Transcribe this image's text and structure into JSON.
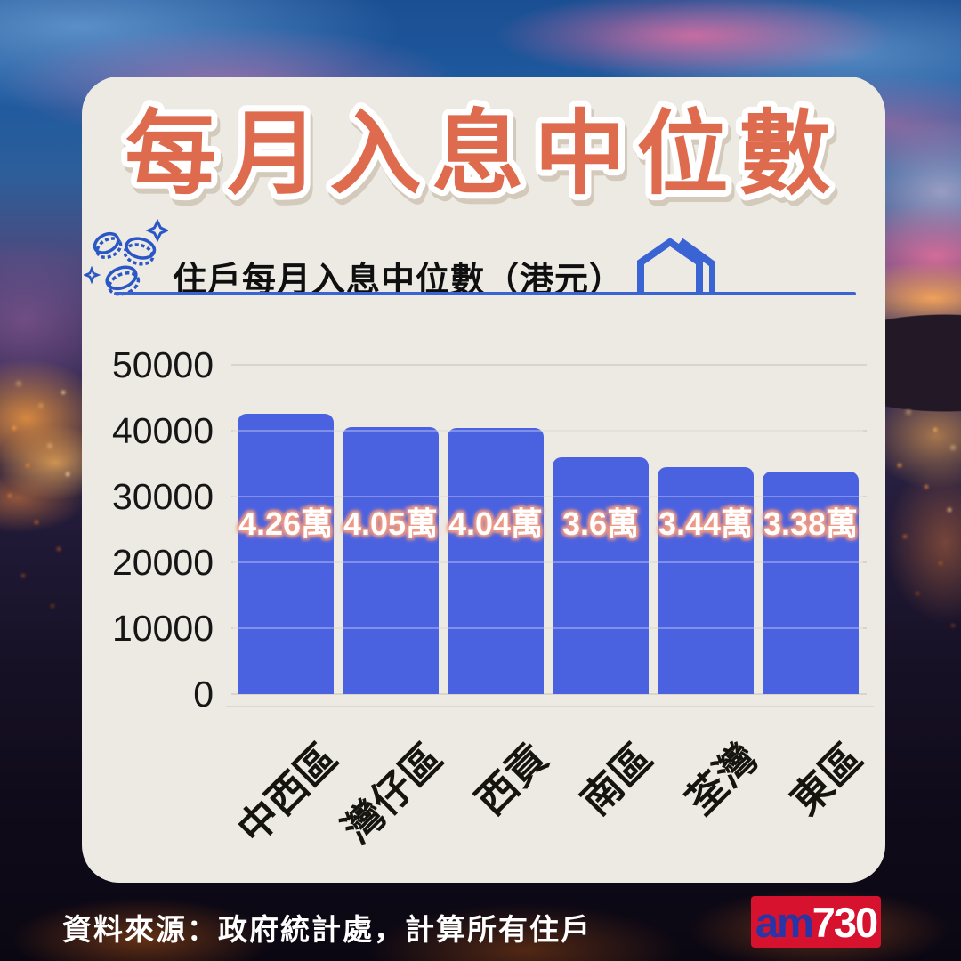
{
  "header": {
    "title": "每月入息中位數"
  },
  "subheader": {
    "label": "住戶每月入息中位數（港元）"
  },
  "icons": [
    "coins-icon",
    "house-icon"
  ],
  "chart_data": {
    "type": "bar",
    "title": "住戶每月入息中位數（港元）",
    "categories": [
      "中西區",
      "灣仔區",
      "西貢",
      "南區",
      "荃灣",
      "東區"
    ],
    "values": [
      42600,
      40500,
      40400,
      36000,
      34400,
      33800
    ],
    "bar_labels": [
      "4.26萬",
      "4.05萬",
      "4.04萬",
      "3.6萬",
      "3.44萬",
      "3.38萬"
    ],
    "ylabel": "",
    "xlabel": "",
    "ylim": [
      0,
      50000
    ],
    "yticks": [
      0,
      10000,
      20000,
      30000,
      40000,
      50000
    ],
    "grid": true,
    "legend": "none",
    "bar_color": "#4A61E0"
  },
  "footer": {
    "source": "資料來源：政府統計處，計算所有住戶",
    "logo_am": "am",
    "logo_number": "730"
  },
  "colors": {
    "card_bg": "#EDEAE3",
    "title": "#DE6B4E",
    "accent_blue": "#3A63D4",
    "bar_blue": "#4A61E0",
    "value_glow": "#F09A84",
    "logo_red": "#D7122E",
    "logo_blue": "#2735A6"
  }
}
